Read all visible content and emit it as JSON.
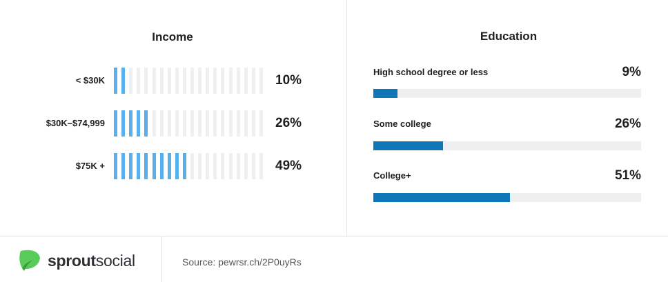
{
  "income": {
    "title": "Income",
    "tick_count": 20,
    "rows": [
      {
        "label": "< $30K",
        "value": 10,
        "value_label": "10%"
      },
      {
        "label": "$30K–$74,999",
        "value": 26,
        "value_label": "26%"
      },
      {
        "label": "$75K +",
        "value": 49,
        "value_label": "49%"
      }
    ]
  },
  "education": {
    "title": "Education",
    "rows": [
      {
        "label": "High school degree or less",
        "value": 9,
        "value_label": "9%"
      },
      {
        "label": "Some college",
        "value": 26,
        "value_label": "26%"
      },
      {
        "label": "College+",
        "value": 51,
        "value_label": "51%"
      }
    ]
  },
  "chart_data": [
    {
      "type": "bar",
      "title": "Income",
      "categories": [
        "< $30K",
        "$30K–$74,999",
        "$75K +"
      ],
      "values": [
        10,
        26,
        49
      ],
      "ylim": [
        0,
        100
      ]
    },
    {
      "type": "bar",
      "title": "Education",
      "categories": [
        "High school degree or less",
        "Some college",
        "College+"
      ],
      "values": [
        9,
        26,
        51
      ],
      "ylim": [
        0,
        100
      ]
    }
  ],
  "footer": {
    "brand_bold": "sprout",
    "brand_light": "social",
    "source": "Source: pewrsr.ch/2P0uyRs"
  },
  "colors": {
    "income_on": "#59aeec",
    "income_off": "#eeeff1",
    "edu_fill": "#0f77b8",
    "edu_track": "#eeeff1",
    "logo_green": "#59cb59"
  },
  "icons": {
    "logo": "sprout-leaf-icon"
  }
}
